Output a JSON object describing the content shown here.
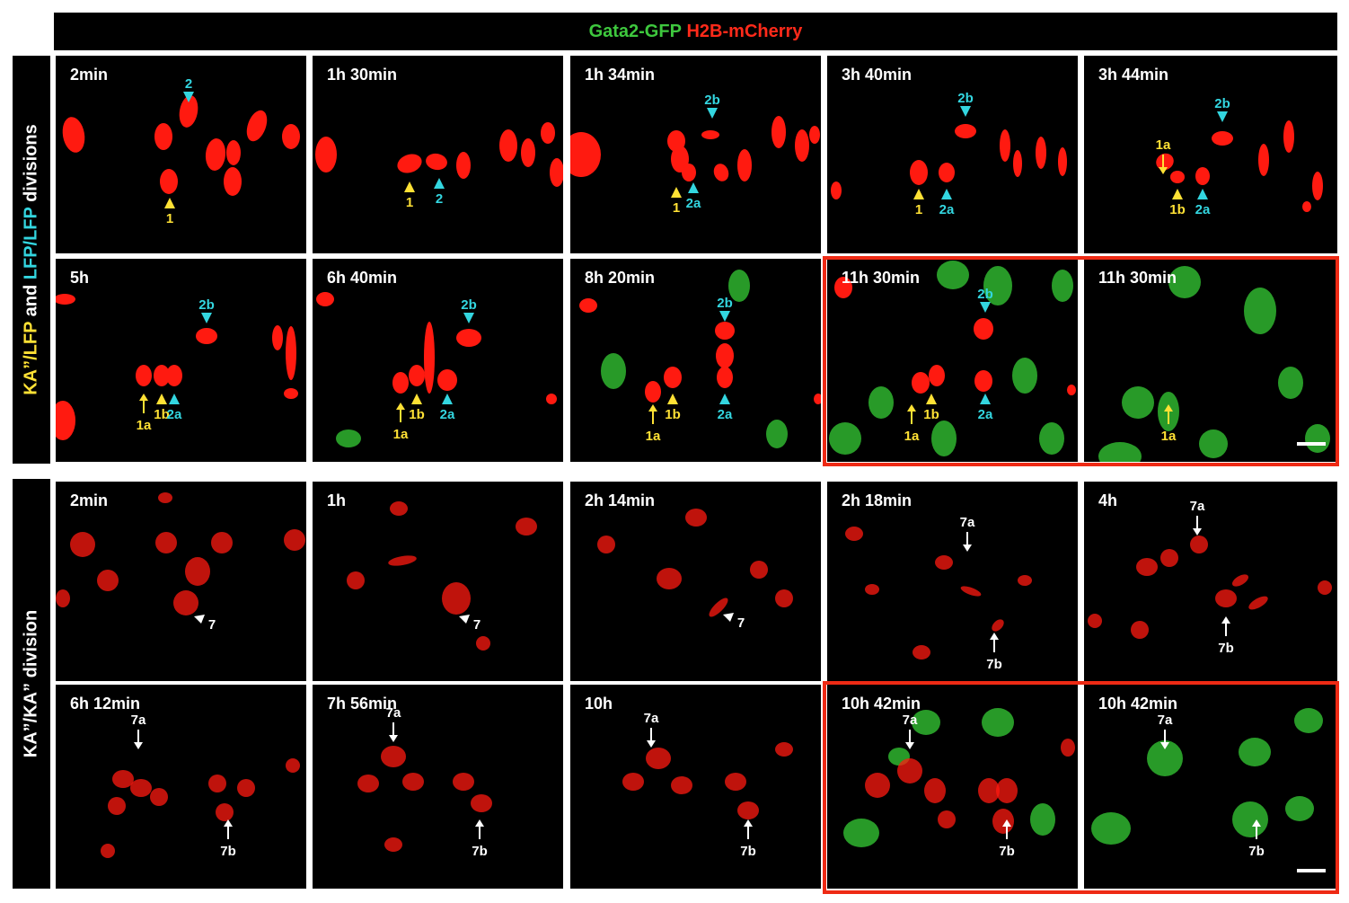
{
  "header": {
    "gfp": "Gata2-GFP",
    "mcherry": "H2B-mCherry"
  },
  "side_top": {
    "part1": "KA”/LFP",
    "part2": " and ",
    "part3": "LFP/LFP",
    "part4": " divisions"
  },
  "side_bottom": {
    "text": "KA”/KA” division"
  },
  "colors": {
    "yellow": "#ffe135",
    "cyan": "#33d6e0",
    "white": "#ffffff",
    "red_box": "#ee2a14",
    "nucleus": "#ff1a10",
    "gfp_cell": "#2fb52f"
  },
  "panels": [
    {
      "time": "2min",
      "markers": [
        {
          "t": "1",
          "c": "yellow",
          "s": "up"
        },
        {
          "t": "2",
          "c": "cyan",
          "s": "down"
        }
      ]
    },
    {
      "time": "1h 30min",
      "markers": [
        {
          "t": "1",
          "c": "yellow",
          "s": "up"
        },
        {
          "t": "2",
          "c": "cyan",
          "s": "up"
        }
      ]
    },
    {
      "time": "1h 34min",
      "markers": [
        {
          "t": "1",
          "c": "yellow",
          "s": "up"
        },
        {
          "t": "2a",
          "c": "cyan",
          "s": "up"
        },
        {
          "t": "2b",
          "c": "cyan",
          "s": "down"
        }
      ]
    },
    {
      "time": "3h 40min",
      "markers": [
        {
          "t": "1",
          "c": "yellow",
          "s": "up"
        },
        {
          "t": "2a",
          "c": "cyan",
          "s": "up"
        },
        {
          "t": "2b",
          "c": "cyan",
          "s": "down"
        }
      ]
    },
    {
      "time": "3h 44min",
      "markers": [
        {
          "t": "1a",
          "c": "yellow",
          "s": "arrow"
        },
        {
          "t": "1b",
          "c": "yellow",
          "s": "up"
        },
        {
          "t": "2a",
          "c": "cyan",
          "s": "up"
        },
        {
          "t": "2b",
          "c": "cyan",
          "s": "down"
        }
      ]
    },
    {
      "time": "5h",
      "markers": [
        {
          "t": "1a",
          "c": "yellow",
          "s": "arrow"
        },
        {
          "t": "1b",
          "c": "yellow",
          "s": "up"
        },
        {
          "t": "2a",
          "c": "cyan",
          "s": "up"
        },
        {
          "t": "2b",
          "c": "cyan",
          "s": "down"
        }
      ]
    },
    {
      "time": "6h 40min",
      "markers": [
        {
          "t": "1a",
          "c": "yellow",
          "s": "arrow"
        },
        {
          "t": "1b",
          "c": "yellow",
          "s": "up"
        },
        {
          "t": "2a",
          "c": "cyan",
          "s": "up"
        },
        {
          "t": "2b",
          "c": "cyan",
          "s": "down"
        }
      ]
    },
    {
      "time": "8h 20min",
      "markers": [
        {
          "t": "1a",
          "c": "yellow",
          "s": "arrow"
        },
        {
          "t": "1b",
          "c": "yellow",
          "s": "up"
        },
        {
          "t": "2a",
          "c": "cyan",
          "s": "up"
        },
        {
          "t": "2b",
          "c": "cyan",
          "s": "down"
        }
      ]
    },
    {
      "time": "11h 30min",
      "markers": [
        {
          "t": "1a",
          "c": "yellow",
          "s": "arrow"
        },
        {
          "t": "1b",
          "c": "yellow",
          "s": "up"
        },
        {
          "t": "2a",
          "c": "cyan",
          "s": "up"
        },
        {
          "t": "2b",
          "c": "cyan",
          "s": "down"
        }
      ]
    },
    {
      "time": "11h 30min",
      "markers": [
        {
          "t": "1a",
          "c": "yellow",
          "s": "arrow"
        }
      ]
    },
    {
      "time": "2min",
      "markers": [
        {
          "t": "7",
          "c": "white",
          "s": "wedge"
        }
      ]
    },
    {
      "time": "1h",
      "markers": [
        {
          "t": "7",
          "c": "white",
          "s": "wedge"
        }
      ]
    },
    {
      "time": "2h 14min",
      "markers": [
        {
          "t": "7",
          "c": "white",
          "s": "wedge"
        }
      ]
    },
    {
      "time": "2h 18min",
      "markers": [
        {
          "t": "7a",
          "c": "white",
          "s": "arrow"
        },
        {
          "t": "7b",
          "c": "white",
          "s": "arrow"
        }
      ]
    },
    {
      "time": "4h",
      "markers": [
        {
          "t": "7a",
          "c": "white",
          "s": "arrow"
        },
        {
          "t": "7b",
          "c": "white",
          "s": "arrow"
        }
      ]
    },
    {
      "time": "6h 12min",
      "markers": [
        {
          "t": "7a",
          "c": "white",
          "s": "arrow"
        },
        {
          "t": "7b",
          "c": "white",
          "s": "arrow"
        }
      ]
    },
    {
      "time": "7h 56min",
      "markers": [
        {
          "t": "7a",
          "c": "white",
          "s": "arrow"
        },
        {
          "t": "7b",
          "c": "white",
          "s": "arrow"
        }
      ]
    },
    {
      "time": "10h",
      "markers": [
        {
          "t": "7a",
          "c": "white",
          "s": "arrow"
        },
        {
          "t": "7b",
          "c": "white",
          "s": "arrow"
        }
      ]
    },
    {
      "time": "10h 42min",
      "markers": [
        {
          "t": "7a",
          "c": "white",
          "s": "arrow"
        },
        {
          "t": "7b",
          "c": "white",
          "s": "arrow"
        }
      ]
    },
    {
      "time": "10h 42min",
      "markers": [
        {
          "t": "7a",
          "c": "white",
          "s": "arrow"
        },
        {
          "t": "7b",
          "c": "white",
          "s": "arrow"
        }
      ]
    }
  ]
}
